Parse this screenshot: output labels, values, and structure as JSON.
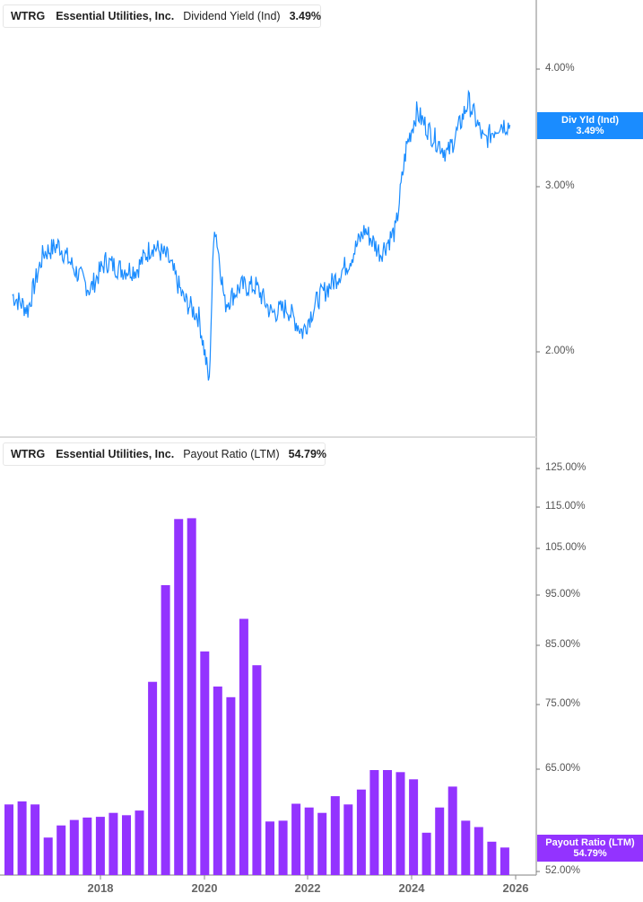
{
  "top_panel": {
    "legend": {
      "ticker": "WTRG",
      "company": "Essential Utilities, Inc.",
      "metric": "Dividend Yield (Ind)",
      "value": "3.49%",
      "color": "#1a8cff"
    },
    "badge": {
      "label": "Div Yld (Ind)",
      "value": "3.49%",
      "color": "#1a8cff"
    },
    "y_ticks": [
      "4.00%",
      "3.00%",
      "2.00%"
    ]
  },
  "bottom_panel": {
    "legend": {
      "ticker": "WTRG",
      "company": "Essential Utilities, Inc.",
      "metric": "Payout Ratio (LTM)",
      "value": "54.79%",
      "color": "#9333ff"
    },
    "badge": {
      "label": "Payout Ratio (LTM)",
      "value": "54.79%",
      "color": "#9333ff"
    },
    "y_ticks": [
      "125.00%",
      "115.00%",
      "105.00%",
      "95.00%",
      "85.00%",
      "75.00%",
      "65.00%",
      "52.00%"
    ]
  },
  "x_axis": {
    "labels": [
      "2018",
      "2020",
      "2022",
      "2024",
      "2026"
    ]
  },
  "chart_data": [
    {
      "type": "line",
      "title": "WTRG Essential Utilities, Inc. Dividend Yield (Ind)",
      "series": [
        {
          "name": "Dividend Yield (Ind)",
          "color": "#1a8cff",
          "last": 3.49
        }
      ],
      "x": [
        "2016.3",
        "2016.6",
        "2016.9",
        "2017.2",
        "2017.5",
        "2017.8",
        "2018.1",
        "2018.4",
        "2018.7",
        "2019.0",
        "2019.3",
        "2019.6",
        "2019.9",
        "2020.1",
        "2020.2",
        "2020.4",
        "2020.7",
        "2021.0",
        "2021.3",
        "2021.6",
        "2021.9",
        "2022.2",
        "2022.5",
        "2022.8",
        "2023.1",
        "2023.4",
        "2023.7",
        "2023.9",
        "2024.1",
        "2024.4",
        "2024.7",
        "2024.9",
        "2025.1",
        "2025.4",
        "2025.7",
        "2025.9"
      ],
      "values": [
        2.3,
        2.22,
        2.55,
        2.6,
        2.45,
        2.33,
        2.5,
        2.45,
        2.45,
        2.6,
        2.52,
        2.28,
        2.18,
        1.85,
        2.75,
        2.25,
        2.35,
        2.35,
        2.2,
        2.23,
        2.1,
        2.28,
        2.38,
        2.5,
        2.7,
        2.55,
        2.7,
        3.3,
        3.6,
        3.4,
        3.25,
        3.45,
        3.7,
        3.35,
        3.5,
        3.49
      ],
      "xlabel": "",
      "ylabel": "",
      "ylim": [
        1.8,
        4.2
      ],
      "y_scale": "log",
      "y_tick_labels": [
        "2.00%",
        "3.00%",
        "4.00%"
      ]
    },
    {
      "type": "bar",
      "title": "WTRG Essential Utilities, Inc. Payout Ratio (LTM)",
      "categories": [
        "2016Q2",
        "2016Q3",
        "2016Q4",
        "2017Q1",
        "2017Q2",
        "2017Q3",
        "2017Q4",
        "2018Q1",
        "2018Q2",
        "2018Q3",
        "2018Q4",
        "2019Q1",
        "2019Q2",
        "2019Q3",
        "2019Q4",
        "2020Q1",
        "2020Q2",
        "2020Q3",
        "2020Q4",
        "2021Q1",
        "2021Q2",
        "2021Q3",
        "2021Q4",
        "2022Q1",
        "2022Q2",
        "2022Q3",
        "2022Q4",
        "2023Q1",
        "2023Q2",
        "2023Q3",
        "2023Q4",
        "2024Q1",
        "2024Q2",
        "2024Q3",
        "2024Q4",
        "2025Q1",
        "2025Q2",
        "2025Q3",
        "2025Q4"
      ],
      "series": [
        {
          "name": "Payout Ratio (LTM)",
          "color": "#9333ff",
          "values": [
            60.2,
            60.6,
            60.2,
            56.0,
            57.5,
            58.2,
            58.5,
            58.6,
            59.1,
            58.8,
            59.4,
            78.7,
            97.2,
            112.3,
            112.5,
            84.1,
            77.9,
            76.1,
            90.3,
            81.6,
            58.0,
            58.1,
            60.3,
            59.8,
            59.1,
            61.3,
            60.2,
            62.2,
            64.9,
            64.9,
            64.6,
            63.6,
            56.6,
            59.8,
            62.6,
            58.1,
            57.3,
            55.5,
            54.79
          ]
        }
      ],
      "xlabel": "",
      "ylabel": "",
      "ylim": [
        52,
        130
      ],
      "y_scale": "log",
      "y_tick_labels": [
        "52.00%",
        "65.00%",
        "75.00%",
        "85.00%",
        "95.00%",
        "105.00%",
        "115.00%",
        "125.00%"
      ],
      "x_tick_labels": [
        "2018",
        "2020",
        "2022",
        "2024",
        "2026"
      ]
    }
  ]
}
